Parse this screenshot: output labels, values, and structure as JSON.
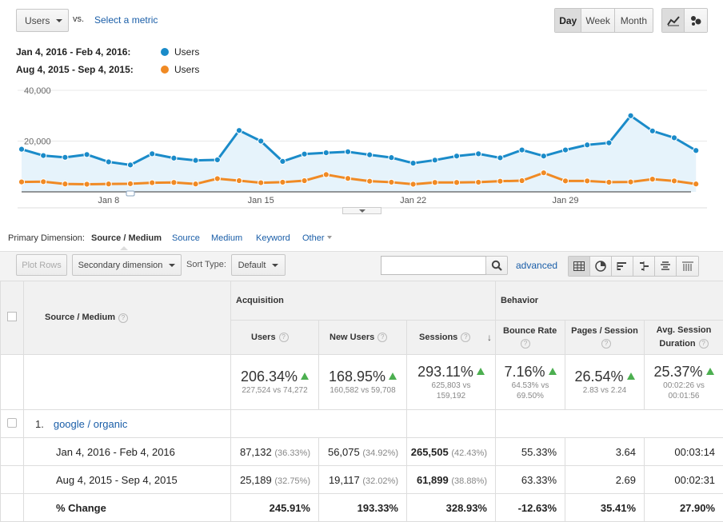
{
  "metric_select": {
    "value": "Users",
    "vs": "vs.",
    "select_metric": "Select a metric"
  },
  "granularity": {
    "day": "Day",
    "week": "Week",
    "month": "Month"
  },
  "legend": [
    {
      "range": "Jan 4, 2016 - Feb 4, 2016:",
      "metric": "Users",
      "color": "#1a8bc9"
    },
    {
      "range": "Aug 4, 2015 - Sep 4, 2015:",
      "metric": "Users",
      "color": "#f08a24"
    }
  ],
  "chart_data": {
    "type": "line",
    "y_ticks": [
      "40,000",
      "20,000"
    ],
    "ylim": [
      0,
      40000
    ],
    "x_ticks": [
      {
        "label": "Jan 8",
        "index": 4
      },
      {
        "label": "Jan 15",
        "index": 11
      },
      {
        "label": "Jan 22",
        "index": 18
      },
      {
        "label": "Jan 29",
        "index": 25
      }
    ],
    "series": [
      {
        "name": "Users",
        "color": "#1a8bc9",
        "fill": "#e6f3fb",
        "values": [
          16800,
          14300,
          13600,
          14700,
          11800,
          10600,
          15000,
          13300,
          12400,
          12600,
          24200,
          20000,
          12000,
          14900,
          15400,
          15800,
          14600,
          13500,
          11300,
          12500,
          14100,
          15000,
          13400,
          16500,
          14100,
          16500,
          18500,
          19300,
          30000,
          24000,
          21300,
          16300
        ]
      },
      {
        "name": "Users",
        "color": "#f08a24",
        "fill": "none",
        "values": [
          3900,
          4000,
          3100,
          3000,
          3100,
          3200,
          3600,
          3700,
          3100,
          5200,
          4400,
          3600,
          3800,
          4400,
          6800,
          5300,
          4200,
          3800,
          3000,
          3700,
          3700,
          3800,
          4200,
          4400,
          7500,
          4300,
          4300,
          3800,
          3900,
          5000,
          4300,
          3100
        ]
      }
    ]
  },
  "primary_dimension": {
    "label": "Primary Dimension:",
    "active": "Source / Medium",
    "options": [
      "Source",
      "Medium",
      "Keyword",
      "Other"
    ]
  },
  "toolbar": {
    "plot_rows": "Plot Rows",
    "secondary_dimension": "Secondary dimension",
    "sort_type_label": "Sort Type:",
    "sort_type_value": "Default",
    "search_placeholder": "",
    "advanced": "advanced"
  },
  "table": {
    "dimension_header": "Source / Medium",
    "groups": {
      "acquisition": "Acquisition",
      "behavior": "Behavior"
    },
    "columns": {
      "users": "Users",
      "new_users": "New Users",
      "sessions": "Sessions",
      "bounce_rate": "Bounce Rate",
      "pages_session": "Pages / Session",
      "avg_duration": "Avg. Session Duration"
    },
    "totals": {
      "users": {
        "pct": "206.34%",
        "cmp": "227,524 vs 74,272"
      },
      "new_users": {
        "pct": "168.95%",
        "cmp": "160,582 vs 59,708"
      },
      "sessions": {
        "pct": "293.11%",
        "cmp1": "625,803 vs",
        "cmp2": "159,192"
      },
      "bounce_rate": {
        "pct": "7.16%",
        "cmp1": "64.53% vs",
        "cmp2": "69.50%"
      },
      "pages_session": {
        "pct": "26.54%",
        "cmp": "2.83 vs 2.24"
      },
      "avg_duration": {
        "pct": "25.37%",
        "cmp1": "00:02:26 vs",
        "cmp2": "00:01:56"
      }
    },
    "row1": {
      "index": "1.",
      "name": "google / organic",
      "period1": {
        "label": "Jan 4, 2016 - Feb 4, 2016",
        "users": "87,132",
        "users_pct": "(36.33%)",
        "new_users": "56,075",
        "new_users_pct": "(34.92%)",
        "sessions": "265,505",
        "sessions_pct": "(42.43%)",
        "bounce": "55.33%",
        "pages": "3.64",
        "duration": "00:03:14"
      },
      "period2": {
        "label": "Aug 4, 2015 - Sep 4, 2015",
        "users": "25,189",
        "users_pct": "(32.75%)",
        "new_users": "19,117",
        "new_users_pct": "(32.02%)",
        "sessions": "61,899",
        "sessions_pct": "(38.88%)",
        "bounce": "63.33%",
        "pages": "2.69",
        "duration": "00:02:31"
      },
      "change": {
        "label": "% Change",
        "users": "245.91%",
        "new_users": "193.33%",
        "sessions": "328.93%",
        "bounce": "-12.63%",
        "pages": "35.41%",
        "duration": "27.90%"
      }
    }
  }
}
